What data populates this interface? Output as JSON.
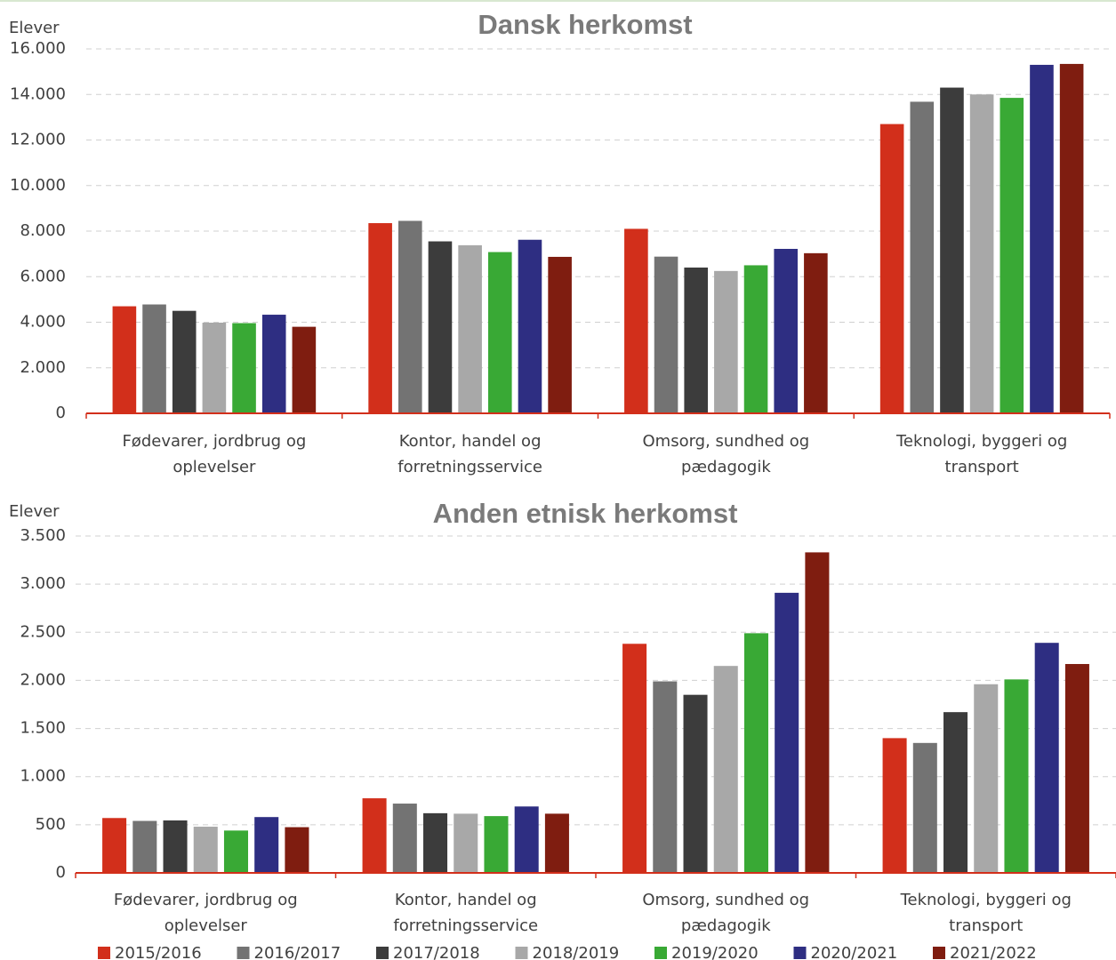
{
  "chart_data": [
    {
      "type": "bar",
      "title": "Dansk herkomst",
      "y_label": "Elever",
      "categories": [
        "Fødevarer, jordbrug og oplevelser",
        "Kontor, handel og forretningsservice",
        "Omsorg, sundhed og pædagogik",
        "Teknologi, byggeri og transport"
      ],
      "ylim": [
        0,
        16000
      ],
      "yticks": [
        0,
        {
          "value": 2000,
          "label": "2.000"
        },
        {
          "value": 4000,
          "label": "4.000"
        },
        {
          "value": 6000,
          "label": "6.000"
        },
        {
          "value": 8000,
          "label": "8.000"
        },
        {
          "value": 10000,
          "label": "10.000"
        },
        {
          "value": 12000,
          "label": "12.000"
        },
        {
          "value": 14000,
          "label": "14.000"
        },
        {
          "value": 16000,
          "label": "16.000"
        }
      ],
      "grid": true,
      "series": [
        {
          "name": "2015/2016",
          "color": "#d22f1b",
          "values": [
            4700,
            8350,
            8100,
            12700
          ]
        },
        {
          "name": "2016/2017",
          "color": "#737373",
          "values": [
            4780,
            8450,
            6880,
            13680
          ]
        },
        {
          "name": "2017/2018",
          "color": "#3c3c3c",
          "values": [
            4500,
            7550,
            6400,
            14300
          ]
        },
        {
          "name": "2018/2019",
          "color": "#a8a8a8",
          "values": [
            3980,
            7380,
            6250,
            14000
          ]
        },
        {
          "name": "2019/2020",
          "color": "#39a935",
          "values": [
            3960,
            7080,
            6500,
            13850
          ]
        },
        {
          "name": "2020/2021",
          "color": "#2e2e82",
          "values": [
            4330,
            7620,
            7220,
            15300
          ]
        },
        {
          "name": "2021/2022",
          "color": "#7f1d10",
          "values": [
            3800,
            6870,
            7030,
            15340
          ]
        }
      ]
    },
    {
      "type": "bar",
      "title": "Anden etnisk herkomst",
      "y_label": "Elever",
      "categories": [
        "Fødevarer, jordbrug og oplevelser",
        "Kontor, handel og forretningsservice",
        "Omsorg, sundhed og pædagogik",
        "Teknologi, byggeri og transport"
      ],
      "ylim": [
        0,
        3500
      ],
      "yticks": [
        0,
        500,
        {
          "value": 1000,
          "label": "1.000"
        },
        {
          "value": 1500,
          "label": "1.500"
        },
        {
          "value": 2000,
          "label": "2.000"
        },
        {
          "value": 2500,
          "label": "2.500"
        },
        {
          "value": 3000,
          "label": "3.000"
        },
        {
          "value": 3500,
          "label": "3.500"
        }
      ],
      "grid": true,
      "series": [
        {
          "color": "#d22f1b",
          "values": [
            570,
            775,
            2380,
            1400
          ]
        },
        {
          "color": "#737373",
          "values": [
            540,
            720,
            1990,
            1350
          ]
        },
        {
          "color": "#3c3c3c",
          "values": [
            545,
            620,
            1850,
            1670
          ]
        },
        {
          "color": "#a8a8a8",
          "values": [
            480,
            615,
            2150,
            1960
          ]
        },
        {
          "color": "#39a935",
          "values": [
            440,
            590,
            2490,
            2010
          ]
        },
        {
          "color": "#2e2e82",
          "values": [
            580,
            690,
            2910,
            2390
          ]
        },
        {
          "color": "#7f1d10",
          "values": [
            475,
            615,
            3330,
            2170
          ]
        }
      ]
    }
  ]
}
